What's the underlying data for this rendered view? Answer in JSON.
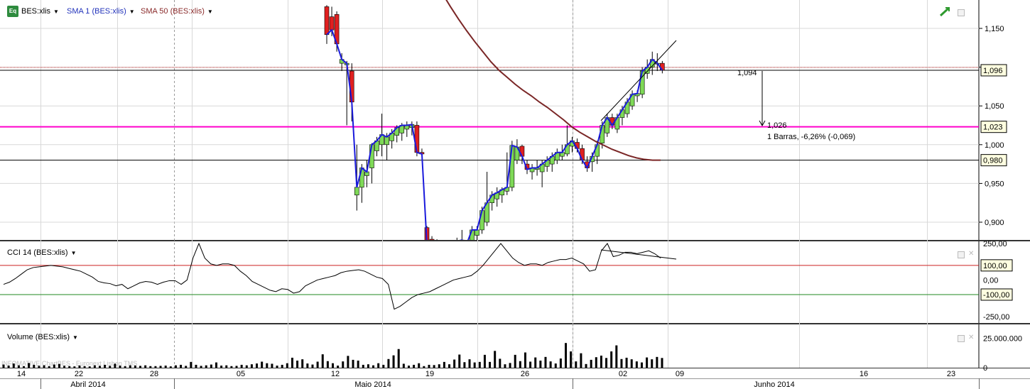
{
  "header": {
    "symbol": "BES:xlis",
    "sma1_label": "SMA 1 (BES:xlis)",
    "sma50_label": "SMA 50 (BES:xlis)",
    "logo_text": "Eq"
  },
  "colors": {
    "up_candle": "#7ed957",
    "down_candle": "#e02020",
    "sma1": "#1a1adc",
    "sma50": "#7a2626",
    "support_line": "#ff00cc",
    "cci_upper": "#cc2222",
    "cci_lower": "#228822"
  },
  "main_axis": {
    "ticks": [
      "1,150",
      "1,100",
      "1,050",
      "1,000",
      "0,950",
      "0,900"
    ],
    "badges": [
      "1,096",
      "1,023",
      "0,980"
    ]
  },
  "annotations": {
    "start_value": "1,094",
    "end_value": "1,026",
    "measure": "1 Barras, -6,26% (-0,069)"
  },
  "cci": {
    "label": "CCI 14 (BES:xlis)",
    "ticks": [
      "250,00",
      "0,00",
      "-250,00"
    ],
    "badges": [
      "100,00",
      "-100,00"
    ]
  },
  "volume": {
    "label": "Volume (BES:xlis)",
    "ticks": [
      "25.000.000",
      "0"
    ],
    "watermark": "INFOMATIVE ChartBES - Euronext Lisbon TMS"
  },
  "time_axis": {
    "day_labels": [
      "14",
      "22",
      "28",
      "05",
      "12",
      "19",
      "26",
      "02",
      "09",
      "16",
      "23"
    ],
    "month_labels": [
      "Abril 2014",
      "Maio 2014",
      "Junho 2014"
    ]
  },
  "chart_data": {
    "type": "candlestick",
    "price_ylim": [
      0.875,
      1.18
    ],
    "candles": [
      {
        "o": 1.178,
        "h": 1.18,
        "l": 1.13,
        "c": 1.142
      },
      {
        "o": 1.165,
        "h": 1.178,
        "l": 1.14,
        "c": 1.148
      },
      {
        "o": 1.168,
        "h": 1.172,
        "l": 1.12,
        "c": 1.13
      },
      {
        "o": 1.105,
        "h": 1.118,
        "l": 1.095,
        "c": 1.11
      },
      {
        "o": 1.103,
        "h": 1.108,
        "l": 1.025,
        "c": 1.105
      },
      {
        "o": 1.095,
        "h": 1.105,
        "l": 1.03,
        "c": 1.055
      },
      {
        "o": 0.935,
        "h": 1.0,
        "l": 0.915,
        "c": 0.945
      },
      {
        "o": 0.945,
        "h": 0.975,
        "l": 0.925,
        "c": 0.97
      },
      {
        "o": 0.96,
        "h": 0.98,
        "l": 0.945,
        "c": 0.965
      },
      {
        "o": 0.97,
        "h": 1.002,
        "l": 0.95,
        "c": 1.0
      },
      {
        "o": 0.992,
        "h": 1.01,
        "l": 0.985,
        "c": 1.005
      },
      {
        "o": 1.0,
        "h": 1.04,
        "l": 0.985,
        "c": 1.013
      },
      {
        "o": 1.0,
        "h": 1.015,
        "l": 0.98,
        "c": 1.01
      },
      {
        "o": 1.005,
        "h": 1.02,
        "l": 0.995,
        "c": 1.015
      },
      {
        "o": 1.012,
        "h": 1.025,
        "l": 1.003,
        "c": 1.022
      },
      {
        "o": 1.015,
        "h": 1.028,
        "l": 1.005,
        "c": 1.025
      },
      {
        "o": 1.02,
        "h": 1.03,
        "l": 1.01,
        "c": 1.025
      },
      {
        "o": 1.022,
        "h": 1.03,
        "l": 1.012,
        "c": 1.026
      },
      {
        "o": 1.025,
        "h": 1.03,
        "l": 0.985,
        "c": 0.99
      },
      {
        "o": 0.99,
        "h": 0.995,
        "l": 0.985,
        "c": 0.988
      },
      {
        "o": 0.893,
        "h": 0.895,
        "l": 0.87,
        "c": 0.872
      },
      {
        "o": 0.878,
        "h": 0.882,
        "l": 0.87,
        "c": 0.872
      },
      {
        "o": 0.875,
        "h": 0.878,
        "l": 0.87,
        "c": 0.872
      },
      {
        "o": 0.873,
        "h": 0.876,
        "l": 0.87,
        "c": 0.872
      },
      {
        "o": 0.872,
        "h": 0.874,
        "l": 0.87,
        "c": 0.873
      },
      {
        "o": 0.872,
        "h": 0.874,
        "l": 0.87,
        "c": 0.873
      },
      {
        "o": 0.872,
        "h": 0.88,
        "l": 0.87,
        "c": 0.875
      },
      {
        "o": 0.872,
        "h": 0.89,
        "l": 0.87,
        "c": 0.877
      },
      {
        "o": 0.872,
        "h": 0.875,
        "l": 0.87,
        "c": 0.873
      },
      {
        "o": 0.873,
        "h": 0.895,
        "l": 0.87,
        "c": 0.89
      },
      {
        "o": 0.883,
        "h": 0.895,
        "l": 0.875,
        "c": 0.89
      },
      {
        "o": 0.89,
        "h": 0.92,
        "l": 0.885,
        "c": 0.915
      },
      {
        "o": 0.9,
        "h": 0.965,
        "l": 0.895,
        "c": 0.925
      },
      {
        "o": 0.925,
        "h": 0.94,
        "l": 0.915,
        "c": 0.935
      },
      {
        "o": 0.93,
        "h": 0.945,
        "l": 0.92,
        "c": 0.938
      },
      {
        "o": 0.935,
        "h": 0.945,
        "l": 0.925,
        "c": 0.942
      },
      {
        "o": 0.94,
        "h": 0.99,
        "l": 0.935,
        "c": 0.945
      },
      {
        "o": 0.945,
        "h": 1.005,
        "l": 0.94,
        "c": 0.999
      },
      {
        "o": 0.98,
        "h": 1.007,
        "l": 0.975,
        "c": 0.997
      },
      {
        "o": 0.998,
        "h": 1.0,
        "l": 0.975,
        "c": 0.985
      },
      {
        "o": 0.975,
        "h": 0.98,
        "l": 0.962,
        "c": 0.968
      },
      {
        "o": 0.965,
        "h": 0.975,
        "l": 0.955,
        "c": 0.97
      },
      {
        "o": 0.968,
        "h": 0.98,
        "l": 0.96,
        "c": 0.97
      },
      {
        "o": 0.965,
        "h": 0.98,
        "l": 0.945,
        "c": 0.975
      },
      {
        "o": 0.972,
        "h": 0.985,
        "l": 0.965,
        "c": 0.98
      },
      {
        "o": 0.975,
        "h": 0.99,
        "l": 0.965,
        "c": 0.985
      },
      {
        "o": 0.98,
        "h": 0.995,
        "l": 0.975,
        "c": 0.99
      },
      {
        "o": 0.985,
        "h": 1.0,
        "l": 0.98,
        "c": 0.99
      },
      {
        "o": 0.988,
        "h": 1.025,
        "l": 0.985,
        "c": 1.0
      },
      {
        "o": 0.998,
        "h": 1.01,
        "l": 0.99,
        "c": 1.005
      },
      {
        "o": 1.003,
        "h": 1.008,
        "l": 0.99,
        "c": 0.995
      },
      {
        "o": 0.995,
        "h": 1.0,
        "l": 0.975,
        "c": 0.98
      },
      {
        "o": 0.978,
        "h": 0.985,
        "l": 0.965,
        "c": 0.97
      },
      {
        "o": 0.978,
        "h": 0.99,
        "l": 0.965,
        "c": 0.985
      },
      {
        "o": 0.985,
        "h": 1.005,
        "l": 0.975,
        "c": 1.0
      },
      {
        "o": 1.002,
        "h": 1.03,
        "l": 0.995,
        "c": 1.025
      },
      {
        "o": 1.015,
        "h": 1.04,
        "l": 1.01,
        "c": 1.035
      },
      {
        "o": 1.035,
        "h": 1.04,
        "l": 1.02,
        "c": 1.025
      },
      {
        "o": 1.02,
        "h": 1.04,
        "l": 1.015,
        "c": 1.035
      },
      {
        "o": 1.035,
        "h": 1.05,
        "l": 1.025,
        "c": 1.045
      },
      {
        "o": 1.04,
        "h": 1.06,
        "l": 1.035,
        "c": 1.055
      },
      {
        "o": 1.05,
        "h": 1.07,
        "l": 1.045,
        "c": 1.065
      },
      {
        "o": 1.063,
        "h": 1.07,
        "l": 1.055,
        "c": 1.066
      },
      {
        "o": 1.065,
        "h": 1.1,
        "l": 1.06,
        "c": 1.095
      },
      {
        "o": 1.092,
        "h": 1.11,
        "l": 1.085,
        "c": 1.1
      },
      {
        "o": 1.1,
        "h": 1.12,
        "l": 1.09,
        "c": 1.11
      },
      {
        "o": 1.104,
        "h": 1.118,
        "l": 1.095,
        "c": 1.105
      },
      {
        "o": 1.105,
        "h": 1.108,
        "l": 1.092,
        "c": 1.096
      }
    ],
    "sma50": [
      1.228,
      1.21,
      1.195,
      1.178,
      1.162,
      1.147,
      1.133,
      1.12,
      1.107,
      1.096,
      1.087,
      1.078,
      1.07,
      1.063,
      1.055,
      1.048,
      1.04,
      1.032,
      1.023,
      1.016,
      1.01,
      1.004,
      0.999,
      0.994,
      0.99,
      0.986,
      0.983,
      0.981,
      0.98,
      0.98
    ],
    "sma50_start_index": 38,
    "trendline": [
      [
        56,
        1.03
      ],
      [
        68,
        1.13
      ]
    ],
    "horizontal_lines": [
      1.096,
      1.023,
      0.98
    ],
    "cci_values": [
      -30,
      -15,
      10,
      40,
      70,
      85,
      90,
      95,
      100,
      95,
      90,
      80,
      70,
      60,
      40,
      20,
      -10,
      -20,
      -25,
      -40,
      -30,
      -60,
      -40,
      -20,
      -10,
      -15,
      -30,
      -15,
      -5,
      -5,
      -30,
      0,
      150,
      250,
      150,
      110,
      100,
      110,
      110,
      100,
      60,
      30,
      -10,
      -30,
      -50,
      -70,
      -80,
      -60,
      -65,
      -90,
      -80,
      -40,
      -20,
      0,
      10,
      20,
      30,
      50,
      60,
      65,
      70,
      60,
      40,
      20,
      10,
      -30,
      -200,
      -180,
      -150,
      -120,
      -100,
      -90,
      -80,
      -60,
      -40,
      -20,
      0,
      10,
      20,
      30,
      60,
      100,
      150,
      200,
      250,
      200,
      150,
      120,
      100,
      110,
      110,
      100,
      120,
      130,
      140,
      140,
      150,
      130,
      110,
      60,
      70,
      200,
      250,
      160,
      170,
      190,
      190,
      180,
      190,
      200,
      180,
      150
    ],
    "cci_trendline": [
      [
        0.62,
        250
      ],
      [
        0.69,
        210
      ]
    ],
    "cci_ylim": [
      -280,
      260
    ],
    "cci_levels": [
      100,
      -100
    ],
    "volume_values": [
      1.2,
      0.8,
      1.6,
      0.9,
      0.6,
      1.8,
      1.1,
      0.7,
      0.9,
      0.6,
      1.2,
      1.4,
      0.7,
      0.6,
      0.5,
      0.8,
      0.6,
      0.5,
      0.9,
      0.7,
      1.1,
      0.7,
      1.5,
      0.8,
      0.6,
      0.9,
      0.8,
      0.7,
      0.9,
      0.6,
      0.6,
      0.7,
      0.8,
      0.5,
      0.9,
      1.1,
      0.7,
      2.2,
      1.1,
      0.7,
      0.9,
      1.2,
      2.0,
      0.8,
      0.9,
      0.6,
      0.7,
      1.1,
      0.9,
      1.3,
      1.6,
      2.3,
      1.7,
      1.5,
      0.8,
      1.1,
      1.7,
      3.8,
      2.7,
      3.2,
      1.6,
      1.2,
      2.3,
      5.1,
      2.5,
      1.7,
      0.8,
      2.4,
      4.5,
      3.0,
      2.7,
      1.1,
      1.3,
      0.9,
      1.7,
      1.1,
      3.3,
      4.7,
      7.1,
      1.5,
      0.8,
      1.1,
      1.7,
      0.6,
      1.1,
      1.0,
      1.3,
      2.2,
      1.3,
      3.1,
      5.0,
      2.1,
      3.2,
      2.0,
      2.2,
      4.9,
      2.2,
      6.4,
      3.4,
      1.3,
      1.8,
      4.9,
      2.5,
      5.8,
      2.3,
      3.9,
      2.7,
      4.1,
      2.4,
      1.6,
      3.5,
      9.4,
      6.2,
      2.4,
      5.5,
      1.4,
      3.0,
      4.0,
      4.6,
      3.7,
      6.2,
      8.5,
      3.3,
      3.8,
      3.2,
      2.4,
      2.0,
      3.9,
      3.2,
      4.1,
      3.7
    ],
    "volume_ylim": [
      0,
      32000000
    ]
  }
}
